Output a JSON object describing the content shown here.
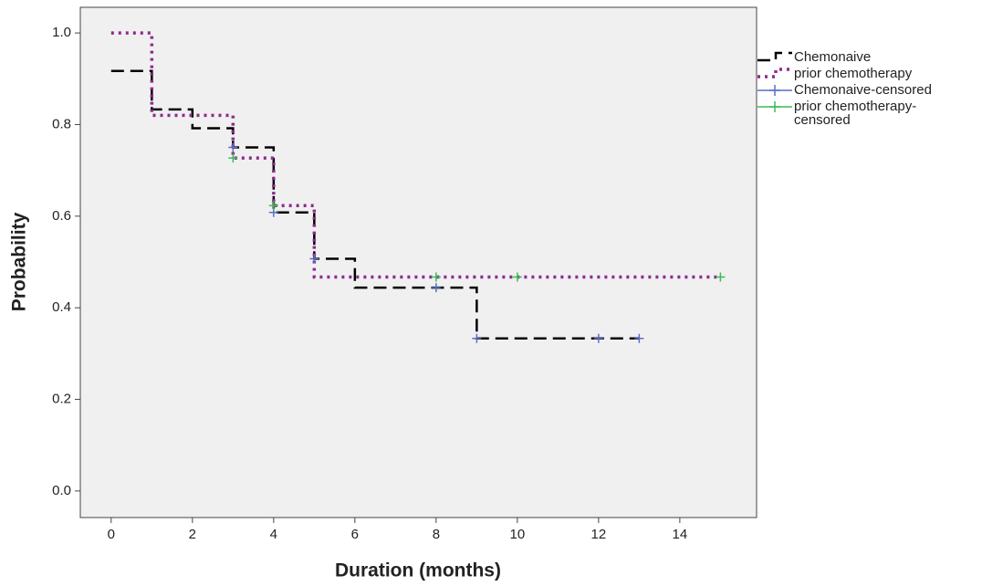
{
  "chart_data": {
    "type": "line",
    "step": "post",
    "xlabel": "Duration (months)",
    "ylabel": "Probability",
    "xlim": [
      -0.76,
      15.89
    ],
    "ylim": [
      -0.058,
      1.056
    ],
    "xticks": [
      0,
      2,
      4,
      6,
      8,
      10,
      12,
      14
    ],
    "yticks": [
      {
        "value": 0,
        "label": "0.0"
      },
      0.2,
      0.4,
      0.6,
      0.8,
      {
        "value": 1,
        "label": "1.0"
      }
    ],
    "background": "#f0f0f0",
    "series": [
      {
        "name": "Chemonaive",
        "color": "#000000",
        "style": "dashed",
        "x": [
          0,
          1,
          2,
          3,
          4,
          5,
          6,
          9,
          13
        ],
        "values": [
          0.917,
          0.833,
          0.792,
          0.75,
          0.608,
          0.507,
          0.444,
          0.333,
          0.333
        ]
      },
      {
        "name": "prior chemotherapy",
        "color": "#8e2a8e",
        "style": "dotted",
        "x": [
          0,
          1,
          3,
          4,
          5,
          15
        ],
        "values": [
          1.0,
          0.82,
          0.727,
          0.623,
          0.467,
          0.467
        ]
      },
      {
        "name": "Chemonaive-censored",
        "color": "#5a6fc4",
        "style": "marker",
        "x": [
          3,
          4,
          5,
          8,
          9,
          12,
          13
        ],
        "values": [
          0.75,
          0.608,
          0.507,
          0.444,
          0.333,
          0.333,
          0.333
        ]
      },
      {
        "name": "prior chemotherapy-censored",
        "color": "#3cbc55",
        "style": "marker",
        "x": [
          3,
          4,
          8,
          10,
          15
        ],
        "values": [
          0.727,
          0.623,
          0.467,
          0.467,
          0.467
        ]
      }
    ]
  }
}
